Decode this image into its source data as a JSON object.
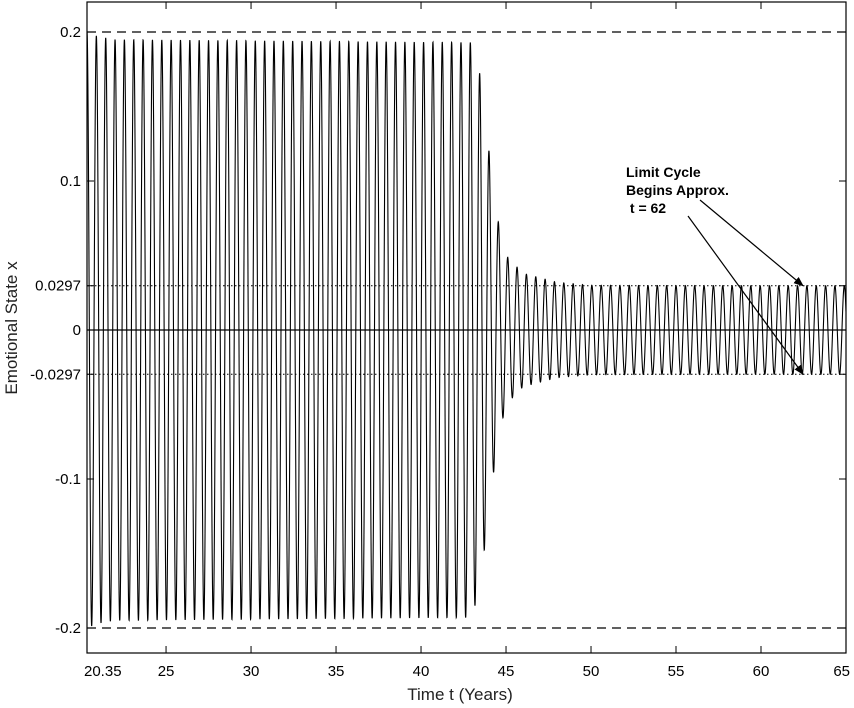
{
  "chart_data": {
    "type": "line",
    "title": "",
    "xlabel": "Time t (Years)",
    "ylabel": "Emotional State x",
    "xlim": [
      20.35,
      65
    ],
    "ylim": [
      -0.22,
      0.22
    ],
    "x_ticks": [
      20.35,
      25,
      30,
      35,
      40,
      45,
      50,
      55,
      60,
      65
    ],
    "x_tick_labels": [
      "20.35",
      "25",
      "30",
      "35",
      "40",
      "45",
      "50",
      "55",
      "60",
      "65"
    ],
    "y_ticks": [
      0.2,
      0.1,
      0.0297,
      0,
      -0.0297,
      -0.1,
      -0.2
    ],
    "y_tick_labels": [
      "0.2",
      "0.1",
      "0.0297",
      "0",
      "-0.0297",
      "-0.1",
      "-0.2"
    ],
    "grid": false,
    "reference_lines": [
      {
        "y": 0.2,
        "style": "dashed"
      },
      {
        "y": -0.2,
        "style": "dashed"
      },
      {
        "y": 0.0297,
        "style": "dotted"
      },
      {
        "y": -0.0297,
        "style": "dotted"
      },
      {
        "y": 0,
        "style": "solid"
      }
    ],
    "series": [
      {
        "style": "oscillation",
        "oscillation_period_years": 0.55,
        "amplitude_envelope": {
          "t": [
            20.35,
            21,
            22,
            43,
            43.5,
            44,
            44.5,
            45,
            46,
            48,
            50,
            55,
            60,
            65
          ],
          "amplitude": [
            0.2,
            0.197,
            0.195,
            0.193,
            0.17,
            0.12,
            0.075,
            0.05,
            0.038,
            0.032,
            0.03,
            0.0298,
            0.0297,
            0.0297
          ]
        }
      }
    ],
    "annotation": {
      "lines": [
        "Limit Cycle",
        "Begins Approx.",
        " t = 62"
      ],
      "arrow_targets": [
        {
          "x": 62,
          "y": 0.0297
        },
        {
          "x": 62,
          "y": -0.0297
        }
      ]
    }
  }
}
